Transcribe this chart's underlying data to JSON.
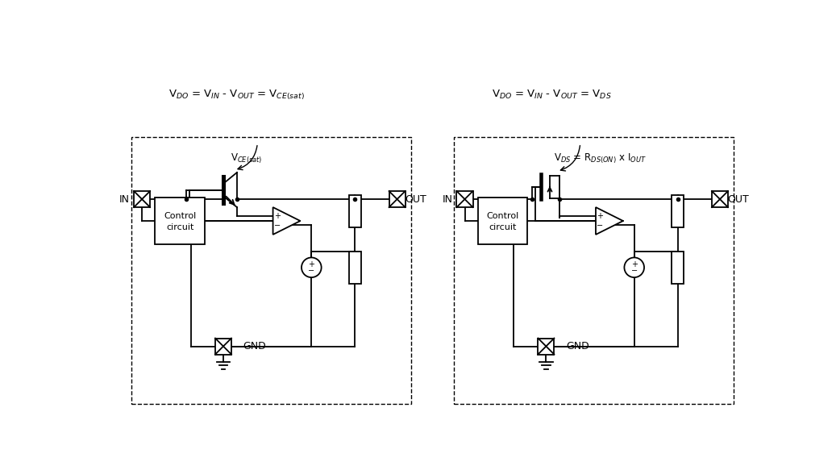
{
  "bg_color": "#ffffff",
  "line_color": "#000000",
  "title1": "V$_{DO}$ = V$_{IN}$ - V$_{OUT}$ = V$_{CE(sat)}$",
  "title2": "V$_{DO}$ = V$_{IN}$ - V$_{OUT}$ = V$_{DS}$",
  "label_IN": "IN",
  "label_OUT": "OUT",
  "label_GND": "GND",
  "label_vce": "V$_{CE(sat)}$",
  "label_vds": "V$_{DS}$ = R$_{DS(ON)}$ x I$_{OUT}$",
  "label_control": [
    "Control",
    "circuit"
  ],
  "figsize": [
    10.37,
    5.83
  ],
  "dpi": 100
}
